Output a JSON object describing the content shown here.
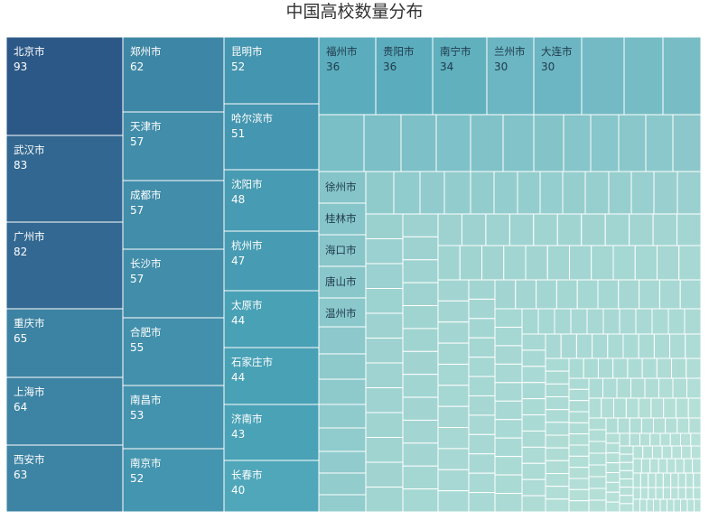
{
  "title": "中国高校数量分布",
  "chart_data": {
    "type": "treemap",
    "title": "中国高校数量分布",
    "labeled": [
      {
        "name": "北京市",
        "value": 93
      },
      {
        "name": "武汉市",
        "value": 83
      },
      {
        "name": "广州市",
        "value": 82
      },
      {
        "name": "重庆市",
        "value": 65
      },
      {
        "name": "上海市",
        "value": 64
      },
      {
        "name": "西安市",
        "value": 63
      },
      {
        "name": "郑州市",
        "value": 62
      },
      {
        "name": "天津市",
        "value": 57
      },
      {
        "name": "成都市",
        "value": 57
      },
      {
        "name": "长沙市",
        "value": 57
      },
      {
        "name": "合肥市",
        "value": 55
      },
      {
        "name": "南昌市",
        "value": 53
      },
      {
        "name": "南京市",
        "value": 52
      },
      {
        "name": "昆明市",
        "value": 52
      },
      {
        "name": "哈尔滨市",
        "value": 51
      },
      {
        "name": "沈阳市",
        "value": 48
      },
      {
        "name": "杭州市",
        "value": 47
      },
      {
        "name": "太原市",
        "value": 44
      },
      {
        "name": "石家庄市",
        "value": 44
      },
      {
        "name": "济南市",
        "value": 43
      },
      {
        "name": "长春市",
        "value": 40
      },
      {
        "name": "福州市",
        "value": 36
      },
      {
        "name": "贵阳市",
        "value": 36
      },
      {
        "name": "南宁市",
        "value": 34
      },
      {
        "name": "兰州市",
        "value": 30
      },
      {
        "name": "大连市",
        "value": 30
      }
    ],
    "name_only": [
      "徐州市",
      "桂林市",
      "海口市",
      "唐山市",
      "温州市"
    ],
    "color_scale": {
      "high": "#2b5886",
      "mid": "#4aa3b8",
      "low": "#b7e1d8"
    }
  }
}
